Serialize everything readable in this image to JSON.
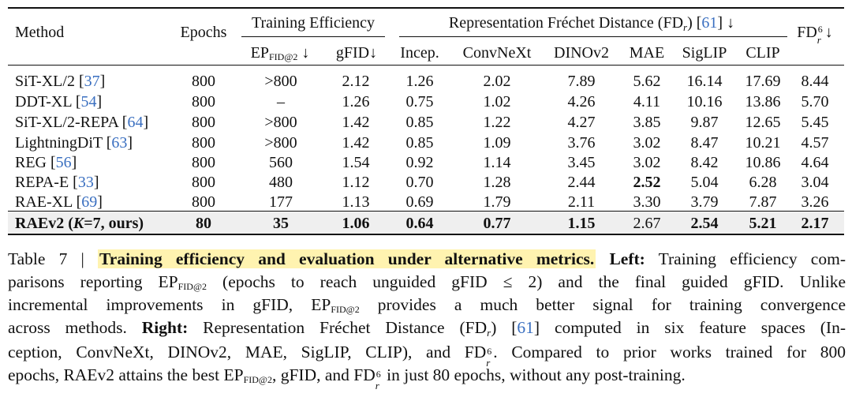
{
  "table": {
    "col_method": "Method",
    "col_epochs": "Epochs",
    "group_training": "Training Efficiency",
    "col_ep": "EP",
    "col_ep_sub": "FID@2",
    "col_ep_arrow": "↓",
    "col_gfid": "gFID↓",
    "group_rep_prefix": "Representation Fréchet Distance (FD",
    "group_rep_sub": "r",
    "group_rep_mid": ") [",
    "group_rep_ref": "61",
    "group_rep_suffix": "] ↓",
    "rep_cols": [
      "Incep.",
      "ConvNeXt",
      "DINOv2",
      "MAE",
      "SigLIP",
      "CLIP"
    ],
    "col_fd6_prefix": "FD",
    "col_fd6_sup": "6",
    "col_fd6_sub": "r",
    "col_fd6_arrow": "↓",
    "rows": [
      {
        "method": "SiT-XL/2 [",
        "ref": "37",
        "close": "]",
        "epochs": "800",
        "ep": ">800",
        "gfid": "2.12",
        "incep": "1.26",
        "convnext": "2.02",
        "dinov2": "7.89",
        "mae": "5.62",
        "siglip": "16.14",
        "clip": "17.69",
        "fd6": "8.44"
      },
      {
        "method": "DDT-XL [",
        "ref": "54",
        "close": "]",
        "epochs": "800",
        "ep": "–",
        "gfid": "1.26",
        "incep": "0.75",
        "convnext": "1.02",
        "dinov2": "4.26",
        "mae": "4.11",
        "siglip": "10.16",
        "clip": "13.86",
        "fd6": "5.70"
      },
      {
        "method": "SiT-XL/2-REPA [",
        "ref": "64",
        "close": "]",
        "epochs": "800",
        "ep": ">800",
        "gfid": "1.42",
        "incep": "0.85",
        "convnext": "1.22",
        "dinov2": "4.27",
        "mae": "3.85",
        "siglip": "9.87",
        "clip": "12.65",
        "fd6": "5.45"
      },
      {
        "method": "LightningDiT [",
        "ref": "63",
        "close": "]",
        "epochs": "800",
        "ep": ">800",
        "gfid": "1.42",
        "incep": "0.85",
        "convnext": "1.09",
        "dinov2": "3.76",
        "mae": "3.02",
        "siglip": "8.47",
        "clip": "10.21",
        "fd6": "4.57"
      },
      {
        "method": "REG [",
        "ref": "56",
        "close": "]",
        "epochs": "800",
        "ep": "560",
        "gfid": "1.54",
        "incep": "0.92",
        "convnext": "1.14",
        "dinov2": "3.45",
        "mae": "3.02",
        "siglip": "8.42",
        "clip": "10.86",
        "fd6": "4.64"
      },
      {
        "method": "REPA-E [",
        "ref": "33",
        "close": "]",
        "epochs": "800",
        "ep": "480",
        "gfid": "1.12",
        "incep": "0.70",
        "convnext": "1.28",
        "dinov2": "2.44",
        "mae": "2.52",
        "siglip": "5.04",
        "clip": "6.28",
        "fd6": "3.04"
      },
      {
        "method": "RAE-XL [",
        "ref": "69",
        "close": "]",
        "epochs": "800",
        "ep": "177",
        "gfid": "1.13",
        "incep": "0.69",
        "convnext": "1.79",
        "dinov2": "2.11",
        "mae": "3.30",
        "siglip": "3.79",
        "clip": "7.87",
        "fd6": "3.26"
      }
    ],
    "final_row": {
      "method_a": "RAEv2 (",
      "method_k": "K",
      "method_b": "=7, ours)",
      "epochs": "80",
      "ep": "35",
      "gfid": "1.06",
      "incep": "0.64",
      "convnext": "0.77",
      "dinov2": "1.15",
      "mae": "2.67",
      "siglip": "2.54",
      "clip": "5.21",
      "fd6": "2.17"
    }
  },
  "caption": {
    "label": "Table 7 | ",
    "highlight": "Training efficiency and evaluation under alternative metrics.",
    "left_label": "Left:",
    "l1_rest": "Training efficiency com-",
    "l2_a": "parisons reporting EP",
    "l2_sub": "FID@2",
    "l2_b": "(epochs to reach unguided gFID ≤ 2) and the final guided gFID. Unlike",
    "l3_a": "incremental improvements in gFID, EP",
    "l3_sub": "FID@2",
    "l3_b": "provides a much better signal for training convergence",
    "l4_a": "across methods.",
    "right_label": "Right:",
    "l4_b": "Representation Fréchet Distance (FD",
    "l4_r": "r",
    "l4_c": ") [",
    "l4_ref": "61",
    "l4_d": "] computed in six feature spaces (In-",
    "l5_a": "ception, ConvNeXt, DINOv2, MAE, SigLIP, CLIP), and FD",
    "l5_sup": "6",
    "l5_r": "r",
    "l5_b": ". Compared to prior works trained for 800",
    "l6_a": "epochs, RAEv2 attains the best EP",
    "l6_sub": "FID@2",
    "l6_b": ", gFID, and FD",
    "l6_sup": "6",
    "l6_r": "r",
    "l6_c": "in just 80 epochs, without any post-training."
  }
}
